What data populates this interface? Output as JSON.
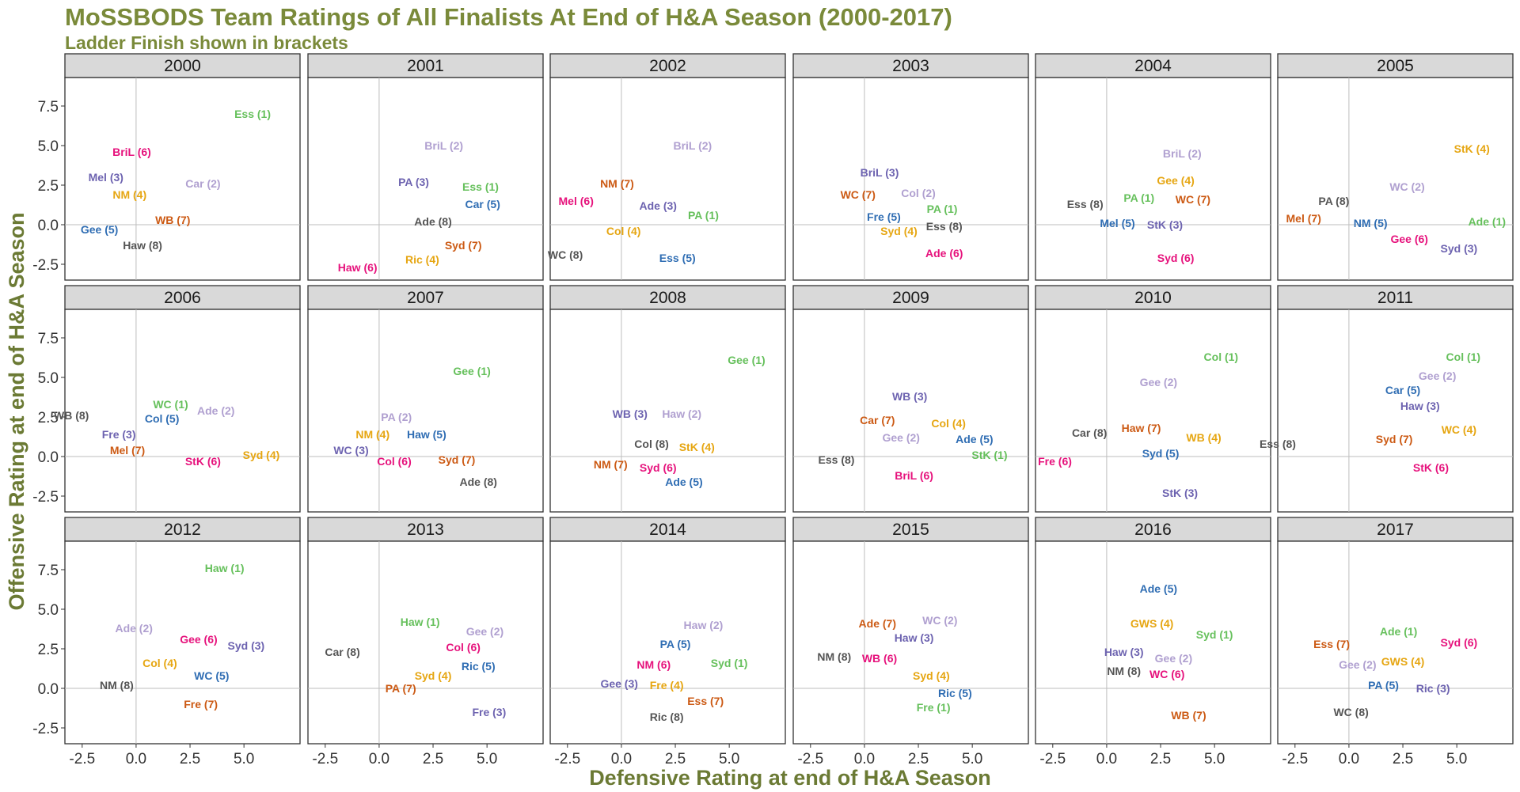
{
  "title": "MoSSBODS Team Ratings of All Finalists At End of H&A Season (2000-2017)",
  "subtitle": "Ladder Finish shown in brackets",
  "xlabel": "Defensive Rating at end of H&A Season",
  "ylabel": "Offensive Rating at end of H&A Season",
  "colors": {
    "title": "#7a8a3a",
    "axis_title": "#6b7a34",
    "strip_bg": "#d9d9d9",
    "panel_border": "#333333",
    "zero_line": "#bdbdbd",
    "ladder": {
      "1": "#66c05c",
      "2": "#b0a0d0",
      "3": "#6d63b0",
      "4": "#e6a612",
      "5": "#2f6db3",
      "6": "#e6127c",
      "7": "#cc5a14",
      "8": "#555555"
    }
  },
  "chart_data": {
    "type": "scatter",
    "facet_by": "season",
    "layout": "3 rows x 6 columns",
    "xlim": [
      -3.3,
      7.6
    ],
    "ylim": [
      -3.5,
      9.3
    ],
    "x_ticks": [
      -2.5,
      0.0,
      2.5,
      5.0
    ],
    "x_tick_labels": [
      "-2.5",
      "0.0",
      "2.5",
      "5.0"
    ],
    "y_ticks": [
      -2.5,
      0.0,
      2.5,
      5.0,
      7.5
    ],
    "y_tick_labels": [
      "-2.5",
      "0.0",
      "2.5",
      "5.0",
      "7.5"
    ],
    "reference_lines": {
      "x": 0,
      "y": 0
    },
    "panels": [
      {
        "year": "2000",
        "points": [
          {
            "team": "Ess",
            "ladder": 1,
            "x": 5.4,
            "y": 7.0
          },
          {
            "team": "Car",
            "ladder": 2,
            "x": 3.1,
            "y": 2.6
          },
          {
            "team": "Mel",
            "ladder": 3,
            "x": -1.4,
            "y": 3.0
          },
          {
            "team": "NM",
            "ladder": 4,
            "x": -0.3,
            "y": 1.9
          },
          {
            "team": "Gee",
            "ladder": 5,
            "x": -1.7,
            "y": -0.3
          },
          {
            "team": "BriL",
            "ladder": 6,
            "x": -0.2,
            "y": 4.6
          },
          {
            "team": "WB",
            "ladder": 7,
            "x": 1.7,
            "y": 0.3
          },
          {
            "team": "Haw",
            "ladder": 8,
            "x": 0.3,
            "y": -1.3
          }
        ]
      },
      {
        "year": "2001",
        "points": [
          {
            "team": "Ess",
            "ladder": 1,
            "x": 4.7,
            "y": 2.4
          },
          {
            "team": "BriL",
            "ladder": 2,
            "x": 3.0,
            "y": 5.0
          },
          {
            "team": "PA",
            "ladder": 3,
            "x": 1.6,
            "y": 2.7
          },
          {
            "team": "Ric",
            "ladder": 4,
            "x": 2.0,
            "y": -2.2
          },
          {
            "team": "Car",
            "ladder": 5,
            "x": 4.8,
            "y": 1.3
          },
          {
            "team": "Haw",
            "ladder": 6,
            "x": -1.0,
            "y": -2.7
          },
          {
            "team": "Syd",
            "ladder": 7,
            "x": 3.9,
            "y": -1.3
          },
          {
            "team": "Ade",
            "ladder": 8,
            "x": 2.5,
            "y": 0.2
          }
        ]
      },
      {
        "year": "2002",
        "points": [
          {
            "team": "PA",
            "ladder": 1,
            "x": 3.8,
            "y": 0.6
          },
          {
            "team": "BriL",
            "ladder": 2,
            "x": 3.3,
            "y": 5.0
          },
          {
            "team": "Ade",
            "ladder": 3,
            "x": 1.7,
            "y": 1.2
          },
          {
            "team": "Col",
            "ladder": 4,
            "x": 0.1,
            "y": -0.4
          },
          {
            "team": "Ess",
            "ladder": 5,
            "x": 2.6,
            "y": -2.1
          },
          {
            "team": "Mel",
            "ladder": 6,
            "x": -2.1,
            "y": 1.5
          },
          {
            "team": "NM",
            "ladder": 7,
            "x": -0.2,
            "y": 2.6
          },
          {
            "team": "WC",
            "ladder": 8,
            "x": -2.6,
            "y": -1.9
          }
        ]
      },
      {
        "year": "2003",
        "points": [
          {
            "team": "PA",
            "ladder": 1,
            "x": 3.6,
            "y": 1.0
          },
          {
            "team": "Col",
            "ladder": 2,
            "x": 2.5,
            "y": 2.0
          },
          {
            "team": "BriL",
            "ladder": 3,
            "x": 0.7,
            "y": 3.3
          },
          {
            "team": "Syd",
            "ladder": 4,
            "x": 1.6,
            "y": -0.4
          },
          {
            "team": "Fre",
            "ladder": 5,
            "x": 0.9,
            "y": 0.5
          },
          {
            "team": "Ade",
            "ladder": 6,
            "x": 3.7,
            "y": -1.8
          },
          {
            "team": "WC",
            "ladder": 7,
            "x": -0.3,
            "y": 1.9
          },
          {
            "team": "Ess",
            "ladder": 8,
            "x": 3.7,
            "y": -0.1
          }
        ]
      },
      {
        "year": "2004",
        "points": [
          {
            "team": "PA",
            "ladder": 1,
            "x": 1.5,
            "y": 1.7
          },
          {
            "team": "BriL",
            "ladder": 2,
            "x": 3.5,
            "y": 4.5
          },
          {
            "team": "StK",
            "ladder": 3,
            "x": 2.7,
            "y": 0.0
          },
          {
            "team": "Gee",
            "ladder": 4,
            "x": 3.2,
            "y": 2.8
          },
          {
            "team": "Mel",
            "ladder": 5,
            "x": 0.5,
            "y": 0.1
          },
          {
            "team": "Syd",
            "ladder": 6,
            "x": 3.2,
            "y": -2.1
          },
          {
            "team": "WC",
            "ladder": 7,
            "x": 4.0,
            "y": 1.6
          },
          {
            "team": "Ess",
            "ladder": 8,
            "x": -1.0,
            "y": 1.3
          }
        ]
      },
      {
        "year": "2005",
        "points": [
          {
            "team": "Ade",
            "ladder": 1,
            "x": 6.4,
            "y": 0.2
          },
          {
            "team": "WC",
            "ladder": 2,
            "x": 2.7,
            "y": 2.4
          },
          {
            "team": "Syd",
            "ladder": 3,
            "x": 5.1,
            "y": -1.5
          },
          {
            "team": "StK",
            "ladder": 4,
            "x": 5.7,
            "y": 4.8
          },
          {
            "team": "NM",
            "ladder": 5,
            "x": 1.0,
            "y": 0.1
          },
          {
            "team": "Gee",
            "ladder": 6,
            "x": 2.8,
            "y": -0.9
          },
          {
            "team": "Mel",
            "ladder": 7,
            "x": -2.1,
            "y": 0.4
          },
          {
            "team": "PA",
            "ladder": 8,
            "x": -0.7,
            "y": 1.5
          }
        ]
      },
      {
        "year": "2006",
        "points": [
          {
            "team": "WC",
            "ladder": 1,
            "x": 1.6,
            "y": 3.3
          },
          {
            "team": "Ade",
            "ladder": 2,
            "x": 3.7,
            "y": 2.9
          },
          {
            "team": "Fre",
            "ladder": 3,
            "x": -0.8,
            "y": 1.4
          },
          {
            "team": "Syd",
            "ladder": 4,
            "x": 5.8,
            "y": 0.1
          },
          {
            "team": "Col",
            "ladder": 5,
            "x": 1.2,
            "y": 2.4
          },
          {
            "team": "StK",
            "ladder": 6,
            "x": 3.1,
            "y": -0.3
          },
          {
            "team": "Mel",
            "ladder": 7,
            "x": -0.4,
            "y": 0.4
          },
          {
            "team": "WB",
            "ladder": 8,
            "x": -3.0,
            "y": 2.6
          }
        ]
      },
      {
        "year": "2007",
        "points": [
          {
            "team": "Gee",
            "ladder": 1,
            "x": 4.3,
            "y": 5.4
          },
          {
            "team": "PA",
            "ladder": 2,
            "x": 0.8,
            "y": 2.5
          },
          {
            "team": "WC",
            "ladder": 3,
            "x": -1.3,
            "y": 0.4
          },
          {
            "team": "NM",
            "ladder": 4,
            "x": -0.3,
            "y": 1.4
          },
          {
            "team": "Haw",
            "ladder": 5,
            "x": 2.2,
            "y": 1.4
          },
          {
            "team": "Col",
            "ladder": 6,
            "x": 0.7,
            "y": -0.3
          },
          {
            "team": "Syd",
            "ladder": 7,
            "x": 3.6,
            "y": -0.2
          },
          {
            "team": "Ade",
            "ladder": 8,
            "x": 4.6,
            "y": -1.6
          }
        ]
      },
      {
        "year": "2008",
        "points": [
          {
            "team": "Gee",
            "ladder": 1,
            "x": 5.8,
            "y": 6.1
          },
          {
            "team": "Haw",
            "ladder": 2,
            "x": 2.8,
            "y": 2.7
          },
          {
            "team": "WB",
            "ladder": 3,
            "x": 0.4,
            "y": 2.7
          },
          {
            "team": "StK",
            "ladder": 4,
            "x": 3.5,
            "y": 0.6
          },
          {
            "team": "Ade",
            "ladder": 5,
            "x": 2.9,
            "y": -1.6
          },
          {
            "team": "Syd",
            "ladder": 6,
            "x": 1.7,
            "y": -0.7
          },
          {
            "team": "NM",
            "ladder": 7,
            "x": -0.5,
            "y": -0.5
          },
          {
            "team": "Col",
            "ladder": 8,
            "x": 1.4,
            "y": 0.8
          }
        ]
      },
      {
        "year": "2009",
        "points": [
          {
            "team": "StK",
            "ladder": 1,
            "x": 5.8,
            "y": 0.1
          },
          {
            "team": "Gee",
            "ladder": 2,
            "x": 1.7,
            "y": 1.2
          },
          {
            "team": "WB",
            "ladder": 3,
            "x": 2.1,
            "y": 3.8
          },
          {
            "team": "Col",
            "ladder": 4,
            "x": 3.9,
            "y": 2.1
          },
          {
            "team": "Ade",
            "ladder": 5,
            "x": 5.1,
            "y": 1.1
          },
          {
            "team": "BriL",
            "ladder": 6,
            "x": 2.3,
            "y": -1.2
          },
          {
            "team": "Car",
            "ladder": 7,
            "x": 0.6,
            "y": 2.3
          },
          {
            "team": "Ess",
            "ladder": 8,
            "x": -1.3,
            "y": -0.2
          }
        ]
      },
      {
        "year": "2010",
        "points": [
          {
            "team": "Col",
            "ladder": 1,
            "x": 5.3,
            "y": 6.3
          },
          {
            "team": "Gee",
            "ladder": 2,
            "x": 2.4,
            "y": 4.7
          },
          {
            "team": "StK",
            "ladder": 3,
            "x": 3.4,
            "y": -2.3
          },
          {
            "team": "WB",
            "ladder": 4,
            "x": 4.5,
            "y": 1.2
          },
          {
            "team": "Syd",
            "ladder": 5,
            "x": 2.5,
            "y": 0.2
          },
          {
            "team": "Fre",
            "ladder": 6,
            "x": -2.4,
            "y": -0.3
          },
          {
            "team": "Haw",
            "ladder": 7,
            "x": 1.6,
            "y": 1.8
          },
          {
            "team": "Car",
            "ladder": 8,
            "x": -0.8,
            "y": 1.5
          }
        ]
      },
      {
        "year": "2011",
        "points": [
          {
            "team": "Col",
            "ladder": 1,
            "x": 5.3,
            "y": 6.3
          },
          {
            "team": "Gee",
            "ladder": 2,
            "x": 4.1,
            "y": 5.1
          },
          {
            "team": "Haw",
            "ladder": 3,
            "x": 3.3,
            "y": 3.2
          },
          {
            "team": "WC",
            "ladder": 4,
            "x": 5.1,
            "y": 1.7
          },
          {
            "team": "Car",
            "ladder": 5,
            "x": 2.5,
            "y": 4.2
          },
          {
            "team": "StK",
            "ladder": 6,
            "x": 3.8,
            "y": -0.7
          },
          {
            "team": "Syd",
            "ladder": 7,
            "x": 2.1,
            "y": 1.1
          },
          {
            "team": "Ess",
            "ladder": 8,
            "x": -3.3,
            "y": 0.8
          }
        ]
      },
      {
        "year": "2012",
        "points": [
          {
            "team": "Haw",
            "ladder": 1,
            "x": 4.1,
            "y": 7.6
          },
          {
            "team": "Ade",
            "ladder": 2,
            "x": -0.1,
            "y": 3.8
          },
          {
            "team": "Syd",
            "ladder": 3,
            "x": 5.1,
            "y": 2.7
          },
          {
            "team": "Col",
            "ladder": 4,
            "x": 1.1,
            "y": 1.6
          },
          {
            "team": "WC",
            "ladder": 5,
            "x": 3.5,
            "y": 0.8
          },
          {
            "team": "Gee",
            "ladder": 6,
            "x": 2.9,
            "y": 3.1
          },
          {
            "team": "Fre",
            "ladder": 7,
            "x": 3.0,
            "y": -1.0
          },
          {
            "team": "NM",
            "ladder": 8,
            "x": -0.9,
            "y": 0.2
          }
        ]
      },
      {
        "year": "2013",
        "points": [
          {
            "team": "Haw",
            "ladder": 1,
            "x": 1.9,
            "y": 4.2
          },
          {
            "team": "Gee",
            "ladder": 2,
            "x": 4.9,
            "y": 3.6
          },
          {
            "team": "Fre",
            "ladder": 3,
            "x": 5.1,
            "y": -1.5
          },
          {
            "team": "Syd",
            "ladder": 4,
            "x": 2.5,
            "y": 0.8
          },
          {
            "team": "Ric",
            "ladder": 5,
            "x": 4.6,
            "y": 1.4
          },
          {
            "team": "Col",
            "ladder": 6,
            "x": 3.9,
            "y": 2.6
          },
          {
            "team": "PA",
            "ladder": 7,
            "x": 1.0,
            "y": 0.0
          },
          {
            "team": "Car",
            "ladder": 8,
            "x": -1.7,
            "y": 2.3
          }
        ]
      },
      {
        "year": "2014",
        "points": [
          {
            "team": "Syd",
            "ladder": 1,
            "x": 5.0,
            "y": 1.6
          },
          {
            "team": "Haw",
            "ladder": 2,
            "x": 3.8,
            "y": 4.0
          },
          {
            "team": "Gee",
            "ladder": 3,
            "x": -0.1,
            "y": 0.3
          },
          {
            "team": "Fre",
            "ladder": 4,
            "x": 2.1,
            "y": 0.2
          },
          {
            "team": "PA",
            "ladder": 5,
            "x": 2.5,
            "y": 2.8
          },
          {
            "team": "NM",
            "ladder": 6,
            "x": 1.5,
            "y": 1.5
          },
          {
            "team": "Ess",
            "ladder": 7,
            "x": 3.9,
            "y": -0.8
          },
          {
            "team": "Ric",
            "ladder": 8,
            "x": 2.1,
            "y": -1.8
          }
        ]
      },
      {
        "year": "2015",
        "points": [
          {
            "team": "Fre",
            "ladder": 1,
            "x": 3.2,
            "y": -1.2
          },
          {
            "team": "WC",
            "ladder": 2,
            "x": 3.5,
            "y": 4.3
          },
          {
            "team": "Haw",
            "ladder": 3,
            "x": 2.3,
            "y": 3.2
          },
          {
            "team": "Syd",
            "ladder": 4,
            "x": 3.1,
            "y": 0.8
          },
          {
            "team": "Ric",
            "ladder": 5,
            "x": 4.2,
            "y": -0.3
          },
          {
            "team": "WB",
            "ladder": 6,
            "x": 0.7,
            "y": 1.9
          },
          {
            "team": "Ade",
            "ladder": 7,
            "x": 0.6,
            "y": 4.1
          },
          {
            "team": "NM",
            "ladder": 8,
            "x": -1.4,
            "y": 2.0
          }
        ]
      },
      {
        "year": "2016",
        "points": [
          {
            "team": "Syd",
            "ladder": 1,
            "x": 5.0,
            "y": 3.4
          },
          {
            "team": "Gee",
            "ladder": 2,
            "x": 3.1,
            "y": 1.9
          },
          {
            "team": "Haw",
            "ladder": 3,
            "x": 0.8,
            "y": 2.3
          },
          {
            "team": "GWS",
            "ladder": 4,
            "x": 2.1,
            "y": 4.1
          },
          {
            "team": "Ade",
            "ladder": 5,
            "x": 2.4,
            "y": 6.3
          },
          {
            "team": "WC",
            "ladder": 6,
            "x": 2.8,
            "y": 0.9
          },
          {
            "team": "WB",
            "ladder": 7,
            "x": 3.8,
            "y": -1.7
          },
          {
            "team": "NM",
            "ladder": 8,
            "x": 0.8,
            "y": 1.1
          }
        ]
      },
      {
        "year": "2017",
        "points": [
          {
            "team": "Ade",
            "ladder": 1,
            "x": 2.3,
            "y": 3.6
          },
          {
            "team": "Gee",
            "ladder": 2,
            "x": 0.4,
            "y": 1.5
          },
          {
            "team": "Ric",
            "ladder": 3,
            "x": 3.9,
            "y": 0.0
          },
          {
            "team": "GWS",
            "ladder": 4,
            "x": 2.5,
            "y": 1.7
          },
          {
            "team": "PA",
            "ladder": 5,
            "x": 1.6,
            "y": 0.2
          },
          {
            "team": "Syd",
            "ladder": 6,
            "x": 5.1,
            "y": 2.9
          },
          {
            "team": "Ess",
            "ladder": 7,
            "x": -0.8,
            "y": 2.8
          },
          {
            "team": "WC",
            "ladder": 8,
            "x": 0.1,
            "y": -1.5
          }
        ]
      }
    ]
  }
}
